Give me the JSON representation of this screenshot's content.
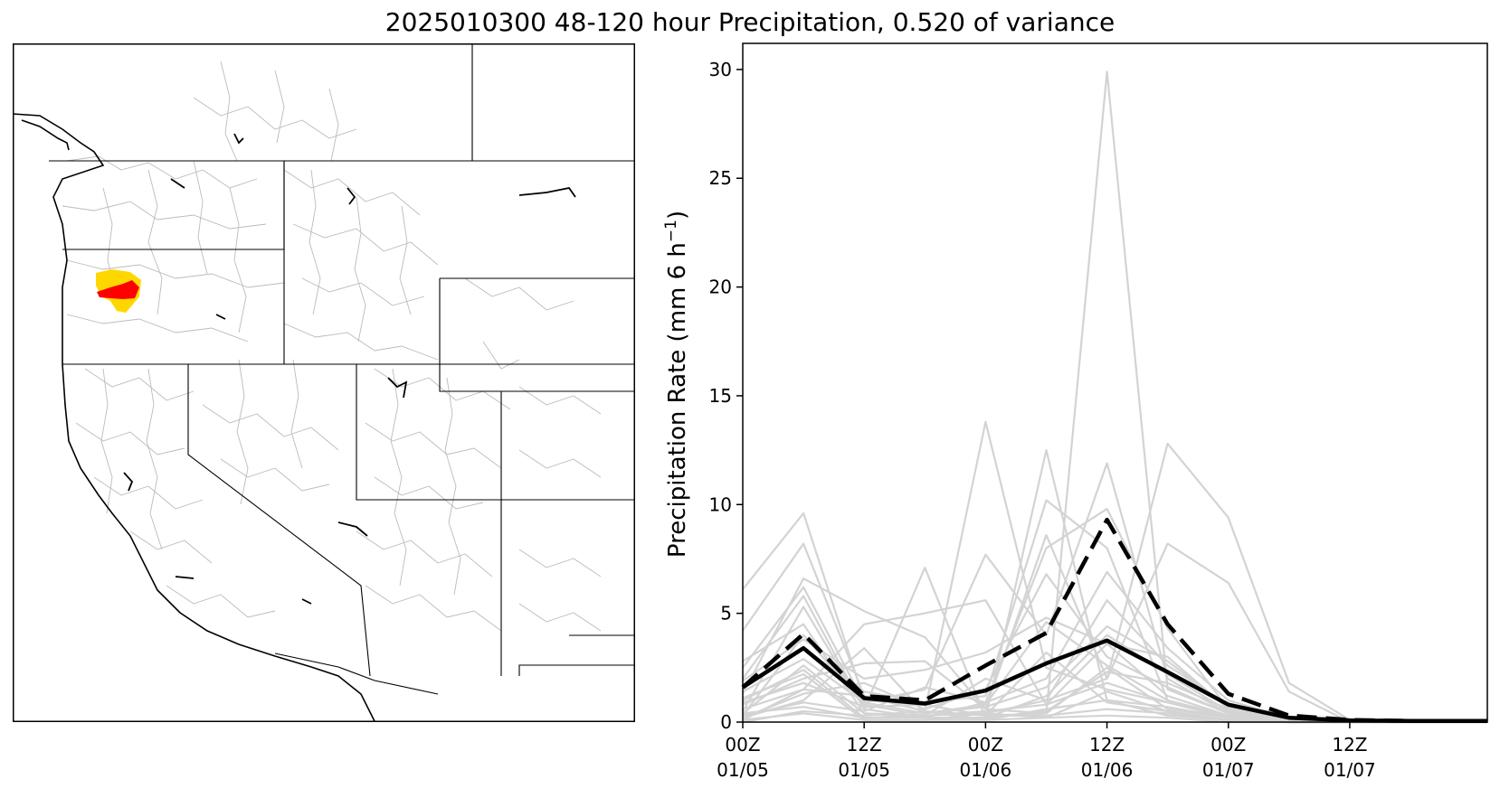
{
  "figure": {
    "title": "2025010300 48-120 hour Precipitation, 0.520 of variance"
  },
  "map_panel": {
    "highlight_colors": {
      "outer": "#ffd700",
      "inner": "#ff0000"
    },
    "border_color": "#000000",
    "basin_color": "#bbbbbb"
  },
  "chart_data": {
    "type": "line",
    "ylabel": "Precipitation Rate (mm 6 h⁻¹)",
    "ylabel_main": "Precipitation Rate (mm 6 h",
    "ylabel_sup": "−1",
    "ylabel_tail": ")",
    "ylim": [
      0,
      31.2
    ],
    "xlim": [
      0,
      18.4
    ],
    "yticks": [
      0,
      5,
      10,
      15,
      20,
      25,
      30
    ],
    "xticks": [
      {
        "x": 0,
        "line1": "00Z",
        "line2": "01/05"
      },
      {
        "x": 3,
        "line1": "12Z",
        "line2": "01/05"
      },
      {
        "x": 6,
        "line1": "00Z",
        "line2": "01/06"
      },
      {
        "x": 9,
        "line1": "12Z",
        "line2": "01/06"
      },
      {
        "x": 12,
        "line1": "00Z",
        "line2": "01/07"
      },
      {
        "x": 15,
        "line1": "12Z",
        "line2": "01/07"
      }
    ],
    "x": [
      0,
      1.5,
      3,
      4.5,
      6,
      7.5,
      9,
      10.5,
      12,
      13.5,
      15,
      16.5,
      18.4
    ],
    "member_color": "#d3d3d3",
    "ensemble_members": [
      [
        6.1,
        9.6,
        1.0,
        0.8,
        0.3,
        0.4,
        2.5,
        0.6,
        0.2,
        0.1,
        0.0,
        0.0,
        0.0
      ],
      [
        4.2,
        8.2,
        1.2,
        0.5,
        13.8,
        2.5,
        1.5,
        0.9,
        0.3,
        0.1,
        0.0,
        0.0,
        0.0
      ],
      [
        1.3,
        6.6,
        5.1,
        3.9,
        0.6,
        0.4,
        29.9,
        1.5,
        0.4,
        0.2,
        0.0,
        0.0,
        0.0
      ],
      [
        2.0,
        5.8,
        0.6,
        7.1,
        0.2,
        12.5,
        1.0,
        0.3,
        0.1,
        0.0,
        0.0,
        0.0,
        0.0
      ],
      [
        0.3,
        4.0,
        0.8,
        0.3,
        0.4,
        1.0,
        2.0,
        12.8,
        9.4,
        1.8,
        0.1,
        0.0,
        0.0
      ],
      [
        1.6,
        3.4,
        1.4,
        0.9,
        1.2,
        10.2,
        8.0,
        1.0,
        0.3,
        0.1,
        0.0,
        0.0,
        0.0
      ],
      [
        2.5,
        6.2,
        0.9,
        1.5,
        7.7,
        4.0,
        11.9,
        2.0,
        0.4,
        0.1,
        0.0,
        0.0,
        0.0
      ],
      [
        0.8,
        2.0,
        2.7,
        2.8,
        0.6,
        8.6,
        2.0,
        8.2,
        6.4,
        1.4,
        0.0,
        0.0,
        0.0
      ],
      [
        0.1,
        1.5,
        4.5,
        5.0,
        5.6,
        0.8,
        3.6,
        3.0,
        0.6,
        0.1,
        0.0,
        0.0,
        0.0
      ],
      [
        0.4,
        2.6,
        0.4,
        0.2,
        0.9,
        8.0,
        9.8,
        4.3,
        0.6,
        0.1,
        0.0,
        0.0,
        0.0
      ],
      [
        0.2,
        1.0,
        3.4,
        0.4,
        0.8,
        4.6,
        2.6,
        1.0,
        0.2,
        0.0,
        0.0,
        0.0,
        0.0
      ],
      [
        0.0,
        0.5,
        0.3,
        0.5,
        0.3,
        0.3,
        0.6,
        0.4,
        0.1,
        0.0,
        0.0,
        0.0,
        0.0
      ],
      [
        1.0,
        2.4,
        0.2,
        0.3,
        2.0,
        1.0,
        5.6,
        2.6,
        0.8,
        0.2,
        0.0,
        0.0,
        0.0
      ],
      [
        0.6,
        1.5,
        1.2,
        0.5,
        0.1,
        0.6,
        1.0,
        0.7,
        0.2,
        0.1,
        0.0,
        0.0,
        0.0
      ],
      [
        1.9,
        3.8,
        2.0,
        2.4,
        3.2,
        4.8,
        3.6,
        1.2,
        0.3,
        0.1,
        0.0,
        0.0,
        0.0
      ],
      [
        0.5,
        5.3,
        0.6,
        0.2,
        0.2,
        1.2,
        4.0,
        2.2,
        0.5,
        0.1,
        0.0,
        0.0,
        0.0
      ],
      [
        1.1,
        2.2,
        0.1,
        0.1,
        0.4,
        0.2,
        1.4,
        0.5,
        0.1,
        0.0,
        0.0,
        0.0,
        0.0
      ],
      [
        0.2,
        1.3,
        1.8,
        0.6,
        1.5,
        6.8,
        3.0,
        1.6,
        0.4,
        0.1,
        0.0,
        0.0,
        0.0
      ],
      [
        0.3,
        0.9,
        0.5,
        1.6,
        0.9,
        2.0,
        6.9,
        3.4,
        1.0,
        0.2,
        0.0,
        0.0,
        0.0
      ],
      [
        2.8,
        4.5,
        0.4,
        0.3,
        0.5,
        0.8,
        1.8,
        0.9,
        0.2,
        0.0,
        0.0,
        0.0,
        0.0
      ],
      [
        0.9,
        1.8,
        0.7,
        0.8,
        0.3,
        3.2,
        0.9,
        0.5,
        0.1,
        0.0,
        0.0,
        0.0,
        0.0
      ],
      [
        0.4,
        0.7,
        0.2,
        0.2,
        0.2,
        0.5,
        2.3,
        1.8,
        0.6,
        0.1,
        0.0,
        0.0,
        0.0
      ],
      [
        1.4,
        2.9,
        0.9,
        0.4,
        0.7,
        1.6,
        4.4,
        2.8,
        0.7,
        0.2,
        0.0,
        0.0,
        0.0
      ],
      [
        0.1,
        0.4,
        0.1,
        0.1,
        0.1,
        0.2,
        0.3,
        0.2,
        0.0,
        0.0,
        0.0,
        0.0,
        0.0
      ]
    ],
    "mean_series": [
      1.6,
      3.4,
      1.1,
      0.85,
      1.45,
      2.7,
      3.75,
      2.3,
      0.8,
      0.2,
      0.08,
      0.05,
      0.05
    ],
    "dashed_series": [
      1.6,
      4.05,
      1.2,
      1.0,
      2.6,
      4.1,
      9.3,
      4.5,
      1.3,
      0.3,
      0.1,
      0.05,
      0.05
    ],
    "mean_color": "#000000",
    "dashed_color": "#000000"
  }
}
